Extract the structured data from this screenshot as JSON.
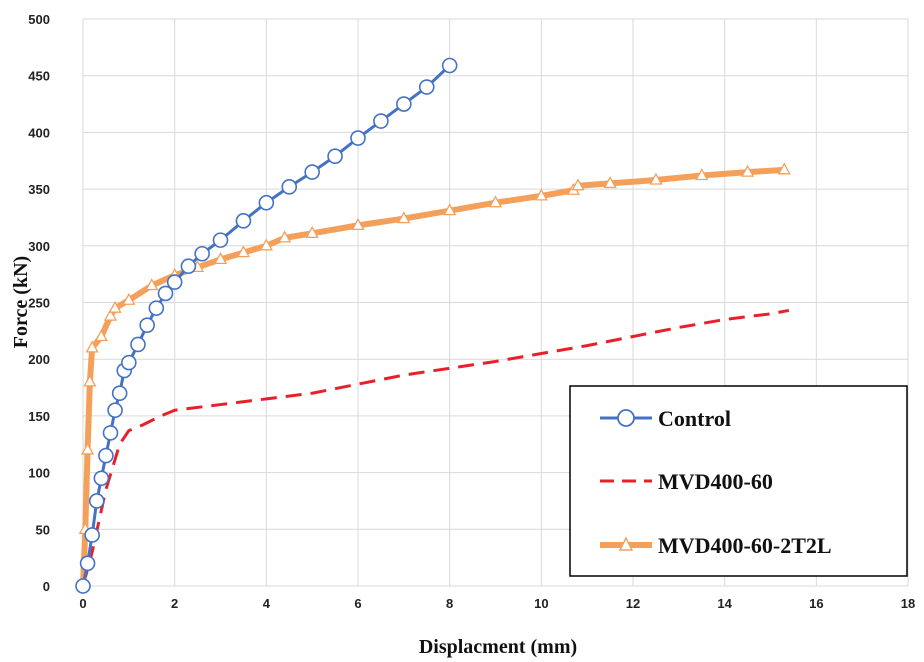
{
  "chart_data": {
    "type": "line",
    "title": "",
    "xlabel": "Displacment (mm)",
    "ylabel": "Force (kN)",
    "xlim": [
      0,
      18
    ],
    "ylim": [
      0,
      500
    ],
    "xticks": [
      "0",
      "2",
      "4",
      "6",
      "8",
      "10",
      "12",
      "14",
      "16",
      "18"
    ],
    "yticks": [
      "0",
      "50",
      "100",
      "150",
      "200",
      "250",
      "300",
      "350",
      "400",
      "450",
      "500"
    ],
    "grid": true,
    "legend_position": "bottom-right",
    "series": [
      {
        "name": "Control",
        "color": "#4472C4",
        "marker": "circle",
        "points": [
          [
            0,
            0
          ],
          [
            0.1,
            20
          ],
          [
            0.2,
            45
          ],
          [
            0.3,
            75
          ],
          [
            0.4,
            95
          ],
          [
            0.5,
            115
          ],
          [
            0.6,
            135
          ],
          [
            0.7,
            155
          ],
          [
            0.8,
            170
          ],
          [
            0.9,
            190
          ],
          [
            1.0,
            197
          ],
          [
            1.2,
            213
          ],
          [
            1.4,
            230
          ],
          [
            1.6,
            245
          ],
          [
            1.8,
            258
          ],
          [
            2.0,
            268
          ],
          [
            2.3,
            282
          ],
          [
            2.6,
            293
          ],
          [
            3.0,
            305
          ],
          [
            3.5,
            322
          ],
          [
            4.0,
            338
          ],
          [
            4.5,
            352
          ],
          [
            5.0,
            365
          ],
          [
            5.5,
            379
          ],
          [
            6.0,
            395
          ],
          [
            6.5,
            410
          ],
          [
            7.0,
            425
          ],
          [
            7.5,
            440
          ],
          [
            8.0,
            459
          ]
        ]
      },
      {
        "name": "MVD400-60",
        "color": "#E8202A",
        "marker": "none",
        "points": [
          [
            0,
            0
          ],
          [
            0.2,
            30
          ],
          [
            0.5,
            85
          ],
          [
            0.8,
            125
          ],
          [
            1.0,
            137
          ],
          [
            1.3,
            142
          ],
          [
            1.7,
            150
          ],
          [
            2.0,
            155
          ],
          [
            3.0,
            160
          ],
          [
            4.0,
            165
          ],
          [
            5.0,
            170
          ],
          [
            6.0,
            178
          ],
          [
            7.0,
            186
          ],
          [
            8.0,
            192
          ],
          [
            9.0,
            198
          ],
          [
            10.0,
            205
          ],
          [
            11.0,
            212
          ],
          [
            12.0,
            220
          ],
          [
            13.0,
            228
          ],
          [
            14.0,
            235
          ],
          [
            15.0,
            240
          ],
          [
            15.4,
            243
          ]
        ]
      },
      {
        "name": "MVD400-60-2T2L",
        "color": "#F4A05A",
        "marker": "triangle",
        "points": [
          [
            0,
            0
          ],
          [
            0.05,
            50
          ],
          [
            0.1,
            120
          ],
          [
            0.15,
            180
          ],
          [
            0.2,
            210
          ],
          [
            0.4,
            220
          ],
          [
            0.6,
            238
          ],
          [
            0.7,
            245
          ],
          [
            1.0,
            252
          ],
          [
            1.5,
            265
          ],
          [
            2.0,
            274
          ],
          [
            2.5,
            281
          ],
          [
            3.0,
            288
          ],
          [
            3.5,
            294
          ],
          [
            4.0,
            300
          ],
          [
            4.4,
            307
          ],
          [
            5.0,
            311
          ],
          [
            6.0,
            318
          ],
          [
            7.0,
            324
          ],
          [
            8.0,
            331
          ],
          [
            9.0,
            338
          ],
          [
            10.0,
            344
          ],
          [
            10.7,
            349
          ],
          [
            10.8,
            353
          ],
          [
            11.5,
            355
          ],
          [
            12.5,
            358
          ],
          [
            13.5,
            362
          ],
          [
            14.5,
            365
          ],
          [
            15.3,
            367
          ]
        ]
      }
    ]
  }
}
